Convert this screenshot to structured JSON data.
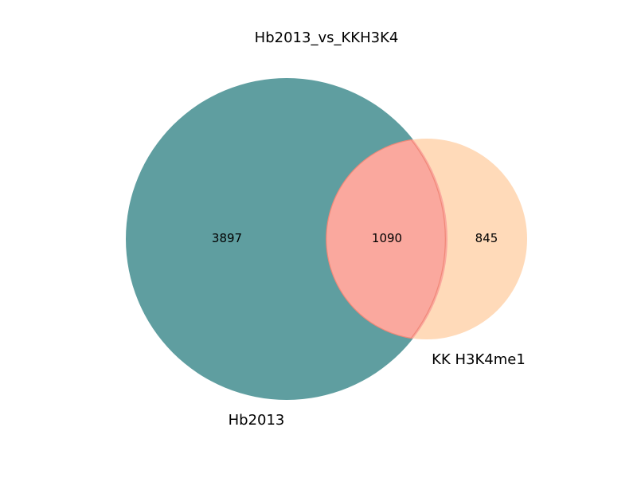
{
  "diagram": {
    "title": "Hb2013_vs_KKH3K4",
    "type": "venn2",
    "sets": [
      {
        "id": "set-a",
        "label": "Hb2013",
        "color": "#5f9ea0"
      },
      {
        "id": "set-b",
        "label": "KK H3K4me1",
        "color": "#ffdab9"
      }
    ],
    "intersection_color": "#faa89e",
    "intersection_edge_color": "#f08878",
    "regions": {
      "only_a": "3897",
      "both": "1090",
      "only_b": "845"
    }
  }
}
